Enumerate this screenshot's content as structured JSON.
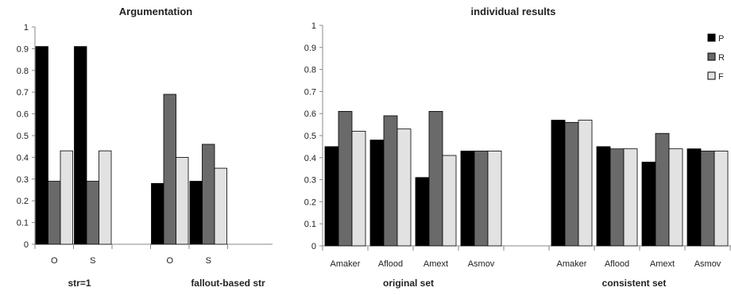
{
  "chart_data": [
    {
      "type": "bar",
      "title": "Argumentation",
      "ylim": [
        0,
        1
      ],
      "yticks": [
        "0",
        "0.1",
        "0.2",
        "0.3",
        "0.4",
        "0.5",
        "0.6",
        "0.7",
        "0.8",
        "0.9",
        "1"
      ],
      "grid": false,
      "groups": [
        {
          "label": "str=1",
          "categories": [
            {
              "label": "O",
              "values": [
                0.91,
                0.29,
                0.43
              ]
            },
            {
              "label": "S",
              "values": [
                0.91,
                0.29,
                0.43
              ]
            }
          ]
        },
        {
          "label": "fallout-based str",
          "categories": [
            {
              "label": "O",
              "values": [
                0.28,
                0.69,
                0.4
              ]
            },
            {
              "label": "S",
              "values": [
                0.29,
                0.46,
                0.35
              ]
            }
          ]
        }
      ],
      "colors": [
        "#000000",
        "#6a6a6a",
        "#e2e2e2"
      ]
    },
    {
      "type": "bar",
      "title": "individual results",
      "ylim": [
        0,
        1
      ],
      "yticks": [
        "0",
        "0.1",
        "0.2",
        "0.3",
        "0.4",
        "0.5",
        "0.6",
        "0.7",
        "0.8",
        "0.9",
        "1"
      ],
      "grid": false,
      "legend_position": "top-right",
      "series_names": [
        "P",
        "R",
        "F"
      ],
      "groups": [
        {
          "label": "original set",
          "categories": [
            {
              "label": "Amaker",
              "values": [
                0.45,
                0.61,
                0.52
              ]
            },
            {
              "label": "Aflood",
              "values": [
                0.48,
                0.59,
                0.53
              ]
            },
            {
              "label": "Amext",
              "values": [
                0.31,
                0.61,
                0.41
              ]
            },
            {
              "label": "Asmov",
              "values": [
                0.43,
                0.43,
                0.43
              ]
            }
          ]
        },
        {
          "label": "consistent set",
          "categories": [
            {
              "label": "Amaker",
              "values": [
                0.57,
                0.56,
                0.57
              ]
            },
            {
              "label": "Aflood",
              "values": [
                0.45,
                0.44,
                0.44
              ]
            },
            {
              "label": "Amext",
              "values": [
                0.38,
                0.51,
                0.44
              ]
            },
            {
              "label": "Asmov",
              "values": [
                0.44,
                0.43,
                0.43
              ]
            }
          ]
        }
      ],
      "colors": [
        "#000000",
        "#6a6a6a",
        "#e2e2e2"
      ]
    }
  ]
}
